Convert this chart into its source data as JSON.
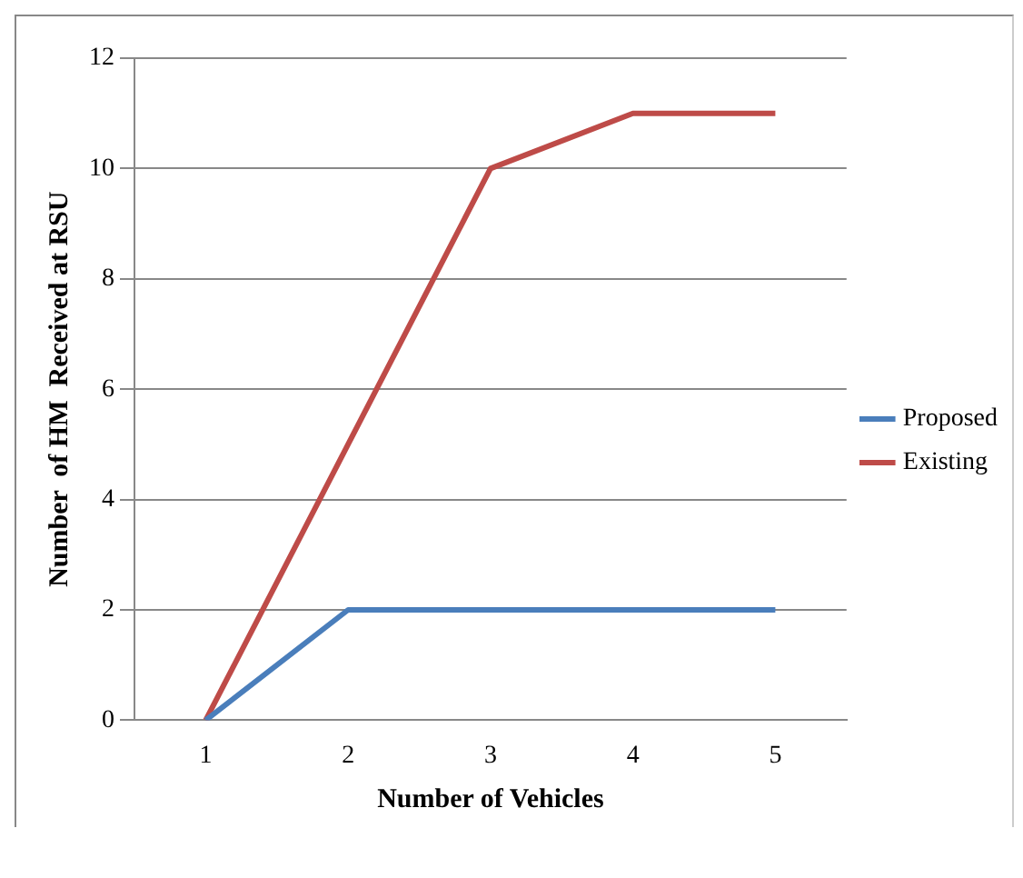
{
  "chart_data": {
    "type": "line",
    "xlabel": "Number of Vehicles",
    "ylabel": "Number  of HM  Received at RSU",
    "categories": [
      "1",
      "2",
      "3",
      "4",
      "5"
    ],
    "series": [
      {
        "name": "Proposed",
        "color": "#4a7ebb",
        "values": [
          0,
          2,
          2,
          2,
          2
        ]
      },
      {
        "name": "Existing",
        "color": "#be4b48",
        "values": [
          0,
          5,
          10,
          11,
          11
        ]
      }
    ],
    "ylim": [
      0,
      12
    ],
    "yticks": [
      0,
      2,
      4,
      6,
      8,
      10,
      12
    ],
    "grid": "y",
    "legend": "right",
    "marker": "none",
    "line_style": "solid"
  }
}
